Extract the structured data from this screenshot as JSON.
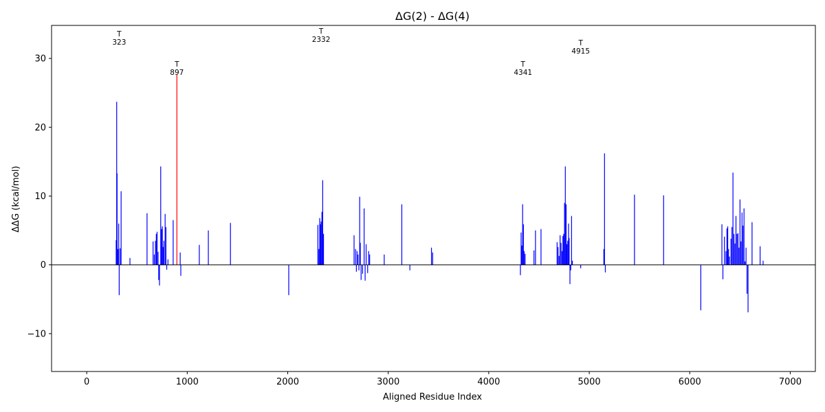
{
  "chart_data": {
    "type": "bar",
    "title": "ΔG(2) - ΔG(4)",
    "xlabel": "Aligned Residue Index",
    "ylabel": "ΔΔG (kcal/mol)",
    "xlim": [
      -350,
      7250
    ],
    "ylim": [
      -15.5,
      34.8
    ],
    "xticks": [
      0,
      1000,
      2000,
      3000,
      4000,
      5000,
      6000,
      7000
    ],
    "yticks": [
      -10,
      0,
      10,
      20,
      30
    ],
    "ytick_labels": [
      "−10",
      "0",
      "10",
      "20",
      "30"
    ],
    "grid": false,
    "zero_line": true,
    "bar_color": "#0000ff",
    "highlight_color": "#ff0000",
    "bars": [
      {
        "x": 293,
        "y": 3.6
      },
      {
        "x": 298,
        "y": 23.7
      },
      {
        "x": 302,
        "y": 13.3
      },
      {
        "x": 310,
        "y": 2.3
      },
      {
        "x": 318,
        "y": 6.0
      },
      {
        "x": 323,
        "y": -4.4
      },
      {
        "x": 332,
        "y": 2.4
      },
      {
        "x": 342,
        "y": 10.7
      },
      {
        "x": 430,
        "y": 1.0
      },
      {
        "x": 600,
        "y": 7.5
      },
      {
        "x": 660,
        "y": 3.4
      },
      {
        "x": 672,
        "y": 1.5
      },
      {
        "x": 684,
        "y": 3.5
      },
      {
        "x": 692,
        "y": 4.5
      },
      {
        "x": 700,
        "y": 4.8
      },
      {
        "x": 710,
        "y": 1.9
      },
      {
        "x": 716,
        "y": -2.2
      },
      {
        "x": 724,
        "y": -3.0
      },
      {
        "x": 736,
        "y": 14.3
      },
      {
        "x": 744,
        "y": 5.2
      },
      {
        "x": 752,
        "y": 5.6
      },
      {
        "x": 760,
        "y": 2.6
      },
      {
        "x": 768,
        "y": 3.5
      },
      {
        "x": 780,
        "y": 7.4
      },
      {
        "x": 788,
        "y": 5.5
      },
      {
        "x": 796,
        "y": -0.7
      },
      {
        "x": 808,
        "y": 0.8
      },
      {
        "x": 860,
        "y": 6.5
      },
      {
        "x": 897,
        "y": 27.6,
        "highlight": true
      },
      {
        "x": 930,
        "y": 1.8
      },
      {
        "x": 936,
        "y": -1.6
      },
      {
        "x": 1120,
        "y": 2.9
      },
      {
        "x": 1210,
        "y": 5.0
      },
      {
        "x": 1430,
        "y": 6.1
      },
      {
        "x": 2010,
        "y": -4.4
      },
      {
        "x": 2300,
        "y": 5.8
      },
      {
        "x": 2310,
        "y": 2.3
      },
      {
        "x": 2318,
        "y": 6.8
      },
      {
        "x": 2326,
        "y": 5.9
      },
      {
        "x": 2332,
        "y": 6.3
      },
      {
        "x": 2340,
        "y": 7.7
      },
      {
        "x": 2348,
        "y": 12.3
      },
      {
        "x": 2356,
        "y": 4.5
      },
      {
        "x": 2660,
        "y": 4.3
      },
      {
        "x": 2675,
        "y": 2.3
      },
      {
        "x": 2683,
        "y": -1.0
      },
      {
        "x": 2690,
        "y": 2.0
      },
      {
        "x": 2700,
        "y": 1.5
      },
      {
        "x": 2708,
        "y": -0.8
      },
      {
        "x": 2716,
        "y": 9.9
      },
      {
        "x": 2722,
        "y": 3.2
      },
      {
        "x": 2730,
        "y": -2.2
      },
      {
        "x": 2745,
        "y": -1.3
      },
      {
        "x": 2760,
        "y": 8.2
      },
      {
        "x": 2770,
        "y": -2.3
      },
      {
        "x": 2780,
        "y": 3.0
      },
      {
        "x": 2795,
        "y": -1.2
      },
      {
        "x": 2805,
        "y": 2.0
      },
      {
        "x": 2815,
        "y": 1.5
      },
      {
        "x": 2960,
        "y": 1.5
      },
      {
        "x": 3135,
        "y": 8.8
      },
      {
        "x": 3215,
        "y": -0.8
      },
      {
        "x": 3430,
        "y": 2.5
      },
      {
        "x": 3442,
        "y": 1.8
      },
      {
        "x": 4315,
        "y": -1.5
      },
      {
        "x": 4322,
        "y": 4.7
      },
      {
        "x": 4330,
        "y": 2.8
      },
      {
        "x": 4337,
        "y": 8.8
      },
      {
        "x": 4345,
        "y": 5.9
      },
      {
        "x": 4352,
        "y": 2.0
      },
      {
        "x": 4362,
        "y": 1.6
      },
      {
        "x": 4450,
        "y": 2.1
      },
      {
        "x": 4465,
        "y": 5.0
      },
      {
        "x": 4520,
        "y": 5.2
      },
      {
        "x": 4680,
        "y": 3.3
      },
      {
        "x": 4690,
        "y": 2.6
      },
      {
        "x": 4700,
        "y": 1.3
      },
      {
        "x": 4710,
        "y": 4.3
      },
      {
        "x": 4720,
        "y": 3.2
      },
      {
        "x": 4730,
        "y": 2.0
      },
      {
        "x": 4738,
        "y": 4.2
      },
      {
        "x": 4746,
        "y": 4.5
      },
      {
        "x": 4754,
        "y": 9.0
      },
      {
        "x": 4762,
        "y": 14.3
      },
      {
        "x": 4770,
        "y": 8.8
      },
      {
        "x": 4778,
        "y": 3.0
      },
      {
        "x": 4786,
        "y": 3.5
      },
      {
        "x": 4794,
        "y": 6.0
      },
      {
        "x": 4800,
        "y": 3.9
      },
      {
        "x": 4808,
        "y": -2.8
      },
      {
        "x": 4816,
        "y": -0.8
      },
      {
        "x": 4824,
        "y": 7.1
      },
      {
        "x": 4832,
        "y": 0.6
      },
      {
        "x": 4915,
        "y": -0.5
      },
      {
        "x": 5145,
        "y": 2.3
      },
      {
        "x": 5152,
        "y": 16.2
      },
      {
        "x": 5160,
        "y": -1.1
      },
      {
        "x": 5450,
        "y": 10.2
      },
      {
        "x": 5740,
        "y": 10.1
      },
      {
        "x": 6110,
        "y": -6.6
      },
      {
        "x": 6320,
        "y": 5.9
      },
      {
        "x": 6330,
        "y": -2.1
      },
      {
        "x": 6345,
        "y": 4.1
      },
      {
        "x": 6360,
        "y": 2.0
      },
      {
        "x": 6370,
        "y": 5.3
      },
      {
        "x": 6378,
        "y": 5.6
      },
      {
        "x": 6386,
        "y": 2.3
      },
      {
        "x": 6395,
        "y": 1.2
      },
      {
        "x": 6410,
        "y": 3.8
      },
      {
        "x": 6420,
        "y": 5.5
      },
      {
        "x": 6430,
        "y": 13.4
      },
      {
        "x": 6440,
        "y": 4.5
      },
      {
        "x": 6450,
        "y": 3.1
      },
      {
        "x": 6460,
        "y": 7.1
      },
      {
        "x": 6470,
        "y": 4.5
      },
      {
        "x": 6480,
        "y": 4.6
      },
      {
        "x": 6490,
        "y": 2.5
      },
      {
        "x": 6500,
        "y": 9.5
      },
      {
        "x": 6510,
        "y": 3.4
      },
      {
        "x": 6520,
        "y": 7.6
      },
      {
        "x": 6530,
        "y": 5.7
      },
      {
        "x": 6540,
        "y": 8.2
      },
      {
        "x": 6550,
        "y": 0.5
      },
      {
        "x": 6560,
        "y": 2.5
      },
      {
        "x": 6570,
        "y": -4.2
      },
      {
        "x": 6580,
        "y": -6.9
      },
      {
        "x": 6620,
        "y": 6.2
      },
      {
        "x": 6700,
        "y": 2.7
      },
      {
        "x": 6730,
        "y": 0.6
      }
    ],
    "annotations": [
      {
        "x": 323,
        "y": 33.2,
        "marker": "T",
        "label": "323"
      },
      {
        "x": 897,
        "y": 28.8,
        "marker": "T",
        "label": "897"
      },
      {
        "x": 2332,
        "y": 33.6,
        "marker": "T",
        "label": "2332"
      },
      {
        "x": 4341,
        "y": 28.8,
        "marker": "T",
        "label": "4341"
      },
      {
        "x": 4915,
        "y": 31.9,
        "marker": "T",
        "label": "4915"
      }
    ]
  }
}
